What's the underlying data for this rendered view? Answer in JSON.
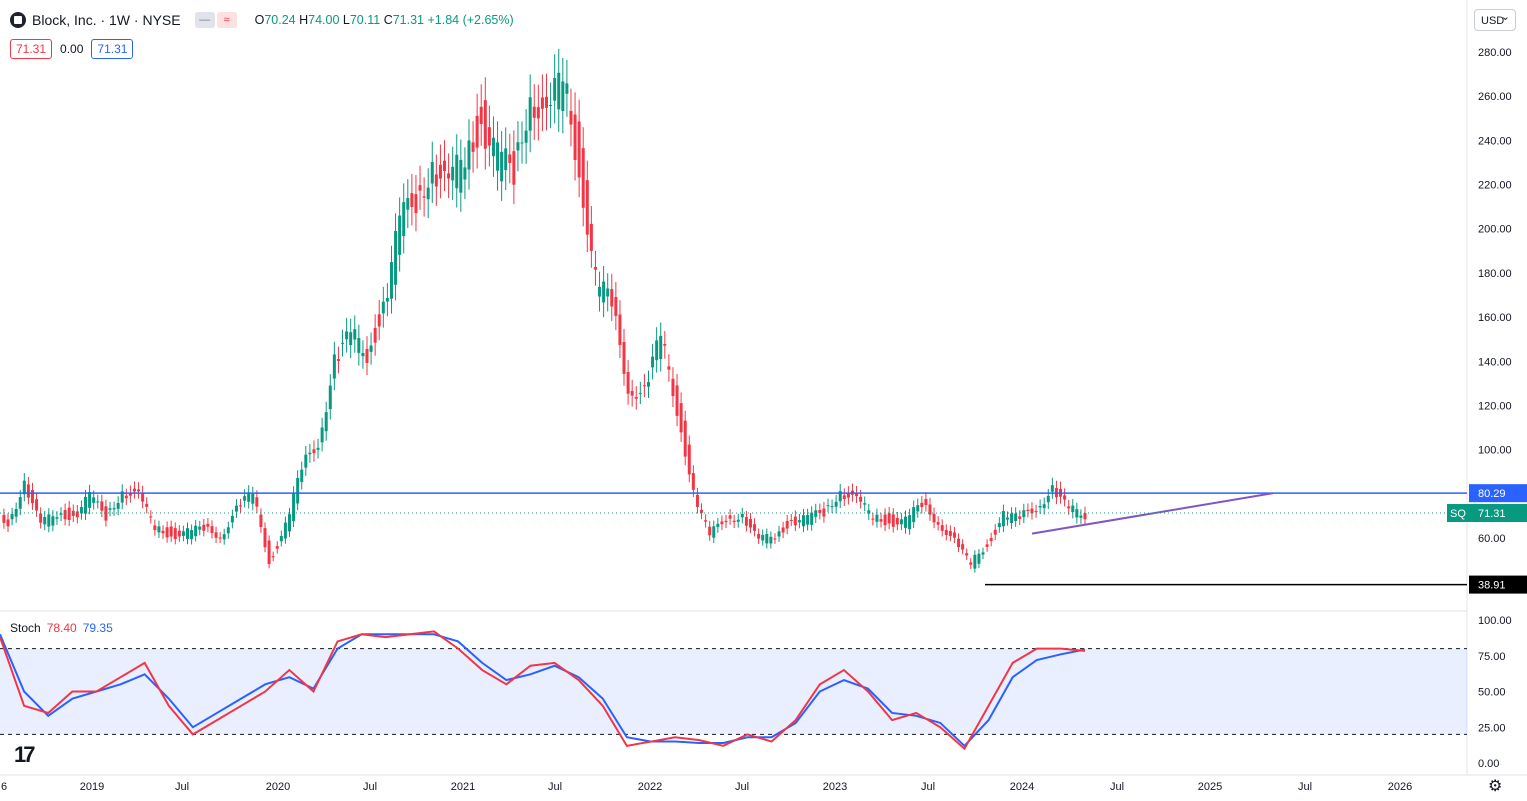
{
  "header": {
    "title": "Block, Inc. · 1W · NYSE",
    "ohlc": {
      "o_label": "O",
      "o": "70.24",
      "h_label": "H",
      "h": "74.00",
      "l_label": "L",
      "l": "70.11",
      "c_label": "C",
      "c": "71.31",
      "change": "+1.84 (+2.65%)"
    },
    "indicator_values": [
      "71.31",
      "0.00",
      "71.31"
    ],
    "currency": "USD"
  },
  "price_axis": {
    "ticks": [
      "280.00",
      "260.00",
      "240.00",
      "220.00",
      "200.00",
      "180.00",
      "160.00",
      "140.00",
      "120.00",
      "100.00",
      "60.00"
    ]
  },
  "price_labels": {
    "resistance": "80.29",
    "symbol": "SQ",
    "last": "71.31",
    "support": "38.91"
  },
  "stoch": {
    "name": "Stoch",
    "k": "78.40",
    "d": "79.35",
    "ticks": [
      "100.00",
      "75.00",
      "50.00",
      "25.00",
      "0.00"
    ]
  },
  "time_axis": {
    "labels": [
      "6",
      "2019",
      "Jul",
      "2020",
      "Jul",
      "2021",
      "Jul",
      "2022",
      "Jul",
      "2023",
      "Jul",
      "2024",
      "Jul",
      "2025",
      "Jul",
      "2026"
    ]
  },
  "colors": {
    "up": "#089981",
    "down": "#f23645",
    "resistance": "#2962ff",
    "trend": "#7e57c2",
    "support": "#000000",
    "k": "#f23645",
    "d": "#2962ff"
  },
  "chart_data": {
    "type": "candlestick",
    "interval": "1W",
    "x": [
      "2018-11",
      "2018-12",
      "2019-01",
      "2019-02",
      "2019-03",
      "2019-04",
      "2019-05",
      "2019-06",
      "2019-07",
      "2019-08",
      "2019-09",
      "2019-10",
      "2019-11",
      "2019-12",
      "2020-01",
      "2020-02",
      "2020-03",
      "2020-04",
      "2020-05",
      "2020-06",
      "2020-07",
      "2020-08",
      "2020-09",
      "2020-10",
      "2020-11",
      "2020-12",
      "2021-01",
      "2021-02",
      "2021-03",
      "2021-04",
      "2021-05",
      "2021-06",
      "2021-07",
      "2021-08",
      "2021-09",
      "2021-10",
      "2021-11",
      "2021-12",
      "2022-01",
      "2022-02",
      "2022-03",
      "2022-04",
      "2022-05",
      "2022-06",
      "2022-07",
      "2022-08",
      "2022-09",
      "2022-10",
      "2022-11",
      "2022-12",
      "2023-01",
      "2023-02",
      "2023-03",
      "2023-04",
      "2023-05",
      "2023-06",
      "2023-07",
      "2023-08",
      "2023-09",
      "2023-10",
      "2023-11",
      "2023-12",
      "2024-01",
      "2024-02",
      "2024-03",
      "2024-04",
      "2024-05"
    ],
    "close": [
      68,
      85,
      65,
      72,
      70,
      78,
      70,
      82,
      78,
      65,
      62,
      62,
      64,
      62,
      72,
      80,
      50,
      65,
      90,
      105,
      140,
      150,
      145,
      165,
      200,
      215,
      230,
      215,
      235,
      250,
      230,
      225,
      265,
      245,
      270,
      230,
      175,
      165,
      130,
      125,
      150,
      120,
      80,
      60,
      70,
      70,
      58,
      62,
      68,
      68,
      72,
      82,
      76,
      70,
      68,
      67,
      75,
      68,
      58,
      48,
      58,
      70,
      68,
      75,
      82,
      72,
      71.31
    ],
    "ylim": [
      30,
      290
    ],
    "horizontal_lines": [
      80.29,
      38.91
    ],
    "trendline": {
      "from": [
        "2024-01",
        62
      ],
      "to": [
        "2025-05",
        80.29
      ]
    },
    "stochastic": {
      "k": [
        88,
        40,
        35,
        50,
        50,
        60,
        70,
        40,
        20,
        30,
        40,
        50,
        65,
        50,
        85,
        90,
        88,
        90,
        92,
        80,
        65,
        55,
        68,
        70,
        58,
        40,
        12,
        15,
        18,
        16,
        12,
        20,
        15,
        30,
        55,
        65,
        50,
        30,
        35,
        25,
        10,
        40,
        70,
        80,
        80,
        78.4
      ],
      "d": [
        90,
        50,
        33,
        45,
        50,
        55,
        62,
        45,
        25,
        35,
        45,
        55,
        60,
        52,
        80,
        90,
        90,
        90,
        90,
        85,
        70,
        58,
        62,
        68,
        60,
        45,
        18,
        15,
        15,
        14,
        14,
        18,
        18,
        28,
        50,
        58,
        52,
        35,
        33,
        28,
        12,
        30,
        60,
        72,
        76,
        79.35
      ],
      "levels": [
        80,
        20
      ],
      "ylim": [
        0,
        100
      ]
    }
  }
}
